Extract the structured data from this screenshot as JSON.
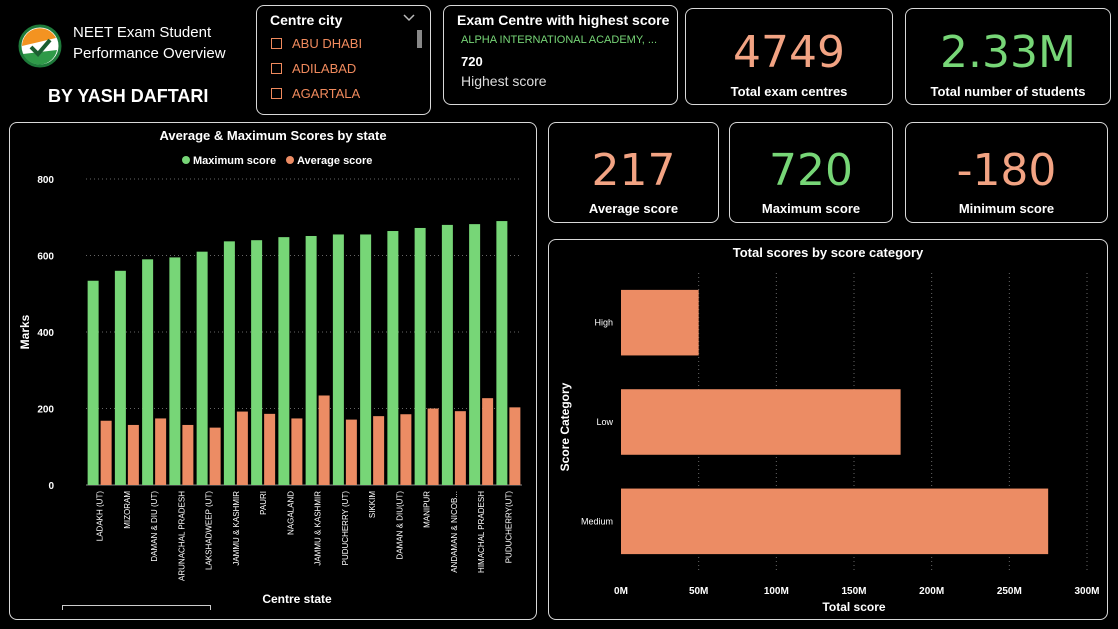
{
  "header": {
    "title_line1": "NEET Exam Student",
    "title_line2": "Performance Overview",
    "author": "BY YASH DAFTARI",
    "logo": "neet-check-logo"
  },
  "slicer": {
    "title": "Centre city",
    "items": [
      "ABU DHABI",
      "ADILABAD",
      "AGARTALA"
    ]
  },
  "highest_centre": {
    "title": "Exam Centre with highest score",
    "centre": "ALPHA INTERNATIONAL ACADEMY, ...",
    "score": "720",
    "label": "Highest score"
  },
  "kpis": {
    "total_centres": {
      "value": "4749",
      "label": "Total exam centres"
    },
    "total_students": {
      "value": "2.33M",
      "label": "Total number of students"
    },
    "avg_score": {
      "value": "217",
      "label": "Average score"
    },
    "max_score": {
      "value": "720",
      "label": "Maximum score"
    },
    "min_score": {
      "value": "-180",
      "label": "Minimum score"
    }
  },
  "colors": {
    "green": "#77d677",
    "orange": "#ec8c64"
  },
  "chart_data": [
    {
      "type": "bar",
      "title": "Average & Maximum Scores by state",
      "xlabel": "Centre state",
      "ylabel": "Marks",
      "ylim": [
        0,
        800
      ],
      "yticks": [
        "0",
        "200",
        "400",
        "600",
        "800"
      ],
      "legend_position": "top-center",
      "categories": [
        "LADAKH (UT)",
        "MIZORAM",
        "DAMAN & DIU (UT)",
        "ARUNACHAL PRADESH",
        "LAKSHADWEEP (UT)",
        "JAMMU & KASHMIR",
        "PAURI",
        "NAGALAND",
        "JAMMU & KASHMIR",
        "PUDUCHERRY (UT)",
        "SIKKIM",
        "DAMAN & DIU(UT)",
        "MANIPUR",
        "ANDAMAN & NICOB...",
        "HIMACHAL PRADESH",
        "PUDUCHERRY(UT)"
      ],
      "series": [
        {
          "name": "Maximum score",
          "values": [
            534,
            560,
            590,
            595,
            610,
            637,
            640,
            648,
            651,
            655,
            655,
            664,
            672,
            680,
            682,
            690
          ]
        },
        {
          "name": "Average score",
          "values": [
            168,
            157,
            174,
            157,
            150,
            192,
            186,
            174,
            234,
            171,
            180,
            185,
            200,
            193,
            227,
            203
          ]
        }
      ]
    },
    {
      "type": "bar",
      "orientation": "horizontal",
      "title": "Total scores by score category",
      "xlabel": "Total score",
      "ylabel": "Score Category",
      "xlim": [
        0,
        300
      ],
      "xticks": [
        "0M",
        "50M",
        "100M",
        "150M",
        "200M",
        "250M",
        "300M"
      ],
      "categories": [
        "High",
        "Low",
        "Medium"
      ],
      "values_millions": [
        50,
        180,
        275
      ],
      "grid": true
    }
  ]
}
